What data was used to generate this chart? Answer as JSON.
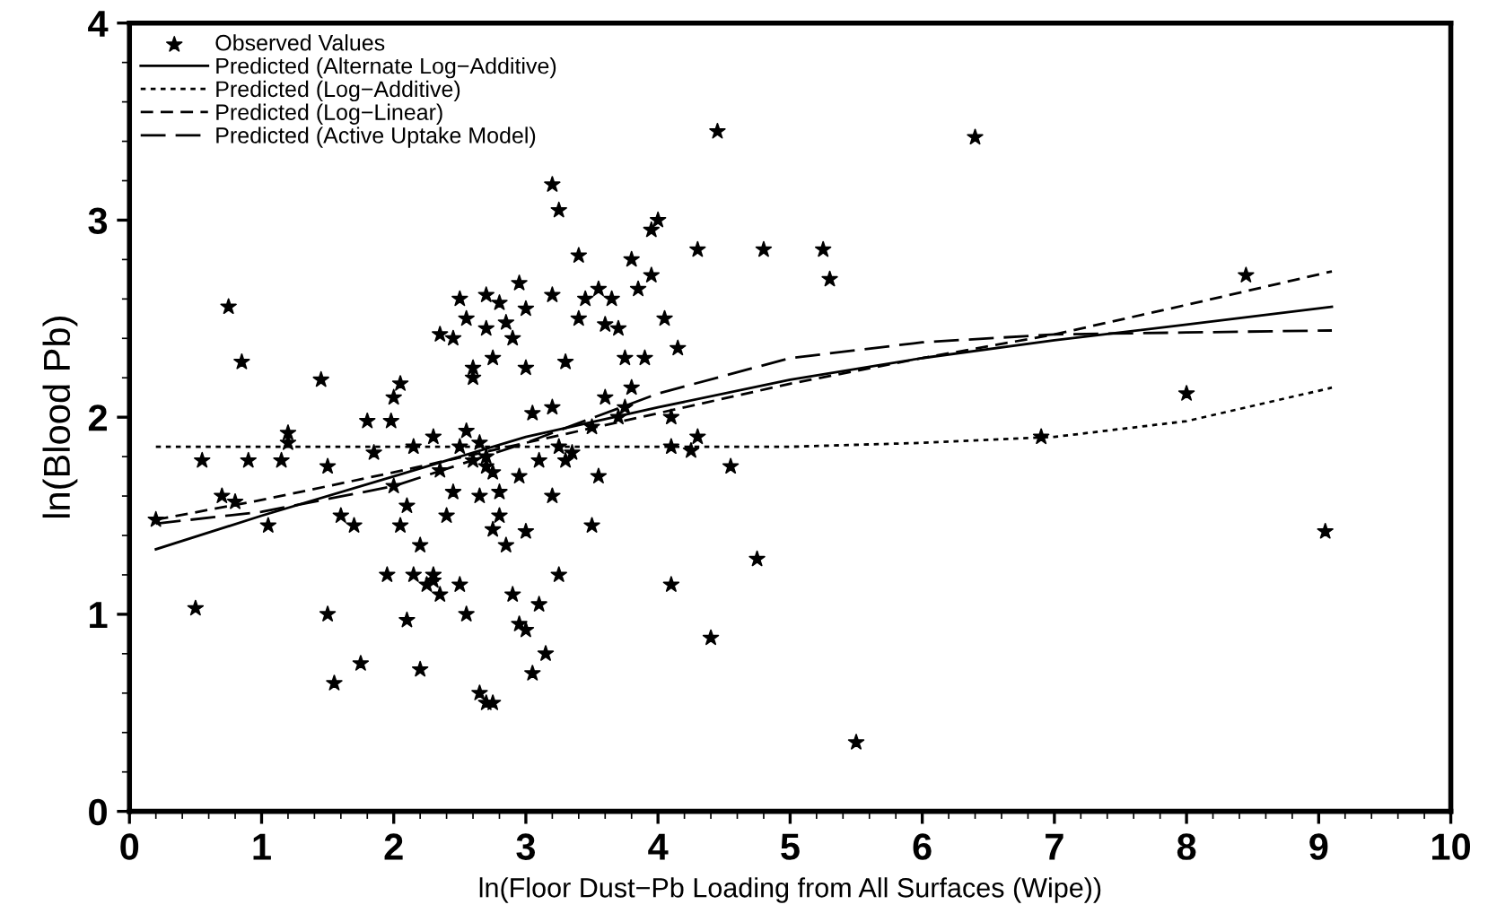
{
  "chart_data": {
    "type": "scatter",
    "xlabel": "ln(Floor Dust−Pb Loading from All Surfaces (Wipe))",
    "ylabel": "ln(Blood Pb)",
    "xlim": [
      0,
      10
    ],
    "ylim": [
      0,
      4
    ],
    "xticks": [
      0,
      1,
      2,
      3,
      4,
      5,
      6,
      7,
      8,
      9,
      10
    ],
    "yticks": [
      0,
      1,
      2,
      3,
      4
    ],
    "grid": false,
    "legend": "top left",
    "series": [
      {
        "name": "Observed Values",
        "marker": "star",
        "color": "#000000",
        "x": [
          0.2,
          0.5,
          0.55,
          0.7,
          0.75,
          0.8,
          0.85,
          0.9,
          1.05,
          1.15,
          1.2,
          1.2,
          1.45,
          1.5,
          1.5,
          1.55,
          1.6,
          1.7,
          1.75,
          1.8,
          1.85,
          1.98,
          2.0,
          2.05,
          2.05,
          2.1,
          2.15,
          2.2,
          2.25,
          2.3,
          2.35,
          2.2,
          2.3,
          2.35,
          2.4,
          2.45,
          2.5,
          2.5,
          2.55,
          2.3,
          2.1,
          2.55,
          2.6,
          2.6,
          2.65,
          2.7,
          2.7,
          2.75,
          2.8,
          2.65,
          2.75,
          2.8,
          2.8,
          2.85,
          2.9,
          2.95,
          2.95,
          3.0,
          3.05,
          3.0,
          3.1,
          3.1,
          2.95,
          3.0,
          2.9,
          3.2,
          3.2,
          3.25,
          3.3,
          3.35,
          3.4,
          3.45,
          3.5,
          3.5,
          3.55,
          3.3,
          3.2,
          3.25,
          3.05,
          3.15,
          3.2,
          3.25,
          3.4,
          3.55,
          3.6,
          3.65,
          3.7,
          3.75,
          3.8,
          3.85,
          3.95,
          3.95,
          4.0,
          4.05,
          4.1,
          4.1,
          4.1,
          4.15,
          4.45,
          4.4,
          4.55,
          4.8,
          4.75,
          5.25,
          5.3,
          5.5,
          6.4,
          6.9,
          8.0,
          8.45,
          9.05,
          4.25,
          3.7,
          4.3,
          2.7,
          2.75,
          2.0,
          1.95,
          2.15,
          2.35,
          2.45,
          2.55,
          2.7,
          2.85,
          3.0,
          3.6,
          3.75,
          3.8,
          3.9,
          4.3,
          2.5,
          2.6,
          2.65,
          2.7,
          2.75
        ],
        "values": [
          1.48,
          1.03,
          1.78,
          1.6,
          2.56,
          1.57,
          2.28,
          1.78,
          1.45,
          1.78,
          1.87,
          1.92,
          2.19,
          1.75,
          1.0,
          0.65,
          1.5,
          1.45,
          0.75,
          1.98,
          1.82,
          1.98,
          2.1,
          2.17,
          1.45,
          1.55,
          1.85,
          1.35,
          1.15,
          1.2,
          1.1,
          0.72,
          1.9,
          1.73,
          1.5,
          1.62,
          1.15,
          2.6,
          1.0,
          1.17,
          0.97,
          1.93,
          2.2,
          2.25,
          1.6,
          1.8,
          2.45,
          2.3,
          2.58,
          0.6,
          1.43,
          1.62,
          1.5,
          1.35,
          1.1,
          1.7,
          2.68,
          2.55,
          2.02,
          1.42,
          1.78,
          1.05,
          0.95,
          0.92,
          2.4,
          2.62,
          2.05,
          1.85,
          1.78,
          1.82,
          2.5,
          2.6,
          1.95,
          1.45,
          1.7,
          2.28,
          1.6,
          1.2,
          0.7,
          0.8,
          3.18,
          3.05,
          2.82,
          2.65,
          2.47,
          2.6,
          2.45,
          2.3,
          2.8,
          2.65,
          2.72,
          2.95,
          3.0,
          2.5,
          2.0,
          1.85,
          1.15,
          2.35,
          3.45,
          0.88,
          1.75,
          2.85,
          1.28,
          2.85,
          2.7,
          0.35,
          3.42,
          1.9,
          2.12,
          2.72,
          1.42,
          1.83,
          2.0,
          2.85,
          0.55,
          0.55,
          1.65,
          1.2,
          1.2,
          2.42,
          2.4,
          2.5,
          2.62,
          2.48,
          2.25,
          2.1,
          2.05,
          2.15,
          2.3,
          1.9,
          1.85,
          1.78,
          1.87,
          1.75,
          1.72
        ]
      },
      {
        "name": "Predicted (Alternate Log−Additive)",
        "type": "line",
        "line_style": "solid",
        "marker": "none",
        "color": "#000000",
        "x": [
          0.2,
          1,
          2,
          3,
          4,
          5,
          6,
          7,
          8,
          9.1
        ],
        "values": [
          1.33,
          1.5,
          1.7,
          1.9,
          2.05,
          2.19,
          2.3,
          2.39,
          2.47,
          2.56
        ]
      },
      {
        "name": "Predicted (Log−Additive)",
        "type": "line",
        "line_style": "dotted",
        "marker": "none",
        "color": "#000000",
        "x": [
          0.2,
          1,
          2,
          3,
          4,
          5,
          6,
          7,
          8,
          9.1
        ],
        "values": [
          1.85,
          1.85,
          1.85,
          1.85,
          1.85,
          1.85,
          1.87,
          1.9,
          1.98,
          2.15
        ]
      },
      {
        "name": "Predicted (Log−Linear)",
        "type": "line",
        "line_style": "dashed",
        "marker": "none",
        "color": "#000000",
        "x": [
          0.2,
          1,
          2,
          3,
          4,
          5,
          6,
          7,
          8,
          9.1
        ],
        "values": [
          1.48,
          1.58,
          1.72,
          1.87,
          2.02,
          2.17,
          2.3,
          2.42,
          2.57,
          2.74
        ]
      },
      {
        "name": "Predicted (Active Uptake Model)",
        "type": "line",
        "line_style": "dashed",
        "marker": "none",
        "color": "#000000",
        "x": [
          0.2,
          1,
          2,
          3,
          4,
          5,
          6,
          7,
          8,
          9.1
        ],
        "values": [
          1.46,
          1.52,
          1.65,
          1.87,
          2.12,
          2.3,
          2.38,
          2.42,
          2.43,
          2.44
        ]
      }
    ]
  }
}
